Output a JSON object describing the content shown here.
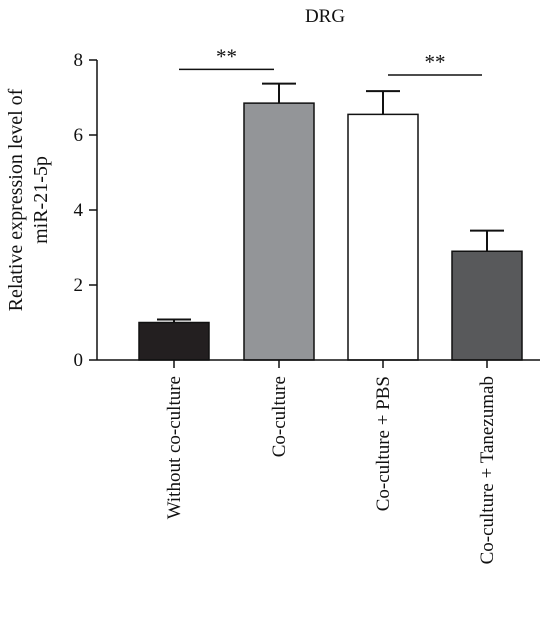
{
  "chart_data": {
    "type": "bar",
    "title": "DRG",
    "xlabel": "",
    "ylabel": [
      "Relative expression level of",
      "miR-21-5p"
    ],
    "ylim": [
      0,
      8
    ],
    "yticks": [
      0,
      2,
      4,
      6,
      8
    ],
    "grid": false,
    "categories": [
      "Without co-culture",
      "Co-culture",
      "Co-culture + PBS",
      "Co-culture + Tanezumab"
    ],
    "values": [
      1.0,
      6.85,
      6.55,
      2.9
    ],
    "errors": [
      0.08,
      0.52,
      0.62,
      0.55
    ],
    "colors": [
      "#231f20",
      "#939598",
      "#ffffff",
      "#58595b"
    ],
    "significance": [
      {
        "label": "**",
        "from": 0,
        "to": 1,
        "y": 7.75
      },
      {
        "label": "**",
        "from": 2,
        "to": 3,
        "y": 7.6
      }
    ]
  }
}
